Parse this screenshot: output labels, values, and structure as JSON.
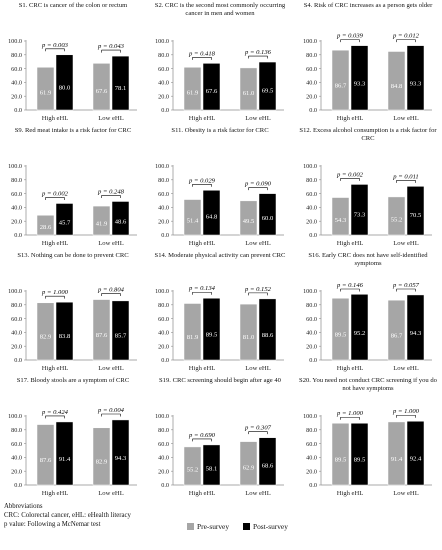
{
  "colors": {
    "pre": "#a6a6a6",
    "post": "#000000",
    "bar_stroke": "#ffffff",
    "axis": "#8c8c8c"
  },
  "chart_data": [
    {
      "type": "bar",
      "title": "S1. CRC is cancer of the colon or rectum",
      "categories": [
        "High eHL",
        "Low eHL"
      ],
      "series": [
        {
          "name": "Pre-survey",
          "values": [
            61.9,
            67.6
          ]
        },
        {
          "name": "Post-survey",
          "values": [
            80.0,
            78.1
          ]
        }
      ],
      "p_values": [
        "p = 0.003",
        "p = 0.043"
      ],
      "ylim": [
        0,
        100
      ],
      "yticks": [
        "0.0",
        "20.0",
        "40.0",
        "60.0",
        "80.0",
        "100.0"
      ]
    },
    {
      "type": "bar",
      "title": "S2. CRC is the second most commonly occurring cancer in men and women",
      "categories": [
        "High eHL",
        "Low eHL"
      ],
      "series": [
        {
          "name": "Pre-survey",
          "values": [
            61.9,
            61.0
          ]
        },
        {
          "name": "Post-survey",
          "values": [
            67.6,
            69.5
          ]
        }
      ],
      "p_values": [
        "p = 0.418",
        "p = 0.136"
      ],
      "ylim": [
        0,
        100
      ],
      "yticks": [
        "0.0",
        "20.0",
        "40.0",
        "60.0",
        "80.0",
        "100.0"
      ]
    },
    {
      "type": "bar",
      "title": "S4. Risk of CRC increases as a person gets older",
      "categories": [
        "High eHL",
        "Low eHL"
      ],
      "series": [
        {
          "name": "Pre-survey",
          "values": [
            86.7,
            84.8
          ]
        },
        {
          "name": "Post-survey",
          "values": [
            93.3,
            93.3
          ]
        }
      ],
      "p_values": [
        "p = 0.039",
        "p = 0.012"
      ],
      "ylim": [
        0,
        100
      ],
      "yticks": [
        "0.0",
        "20.0",
        "40.0",
        "60.0",
        "80.0",
        "100.0"
      ]
    },
    {
      "type": "bar",
      "title": "S9. Red meat intake is a risk factor for CRC",
      "categories": [
        "High eHL",
        "Low eHL"
      ],
      "series": [
        {
          "name": "Pre-survey",
          "values": [
            28.6,
            41.9
          ]
        },
        {
          "name": "Post-survey",
          "values": [
            45.7,
            48.6
          ]
        }
      ],
      "p_values": [
        "p = 0.002",
        "p = 0.248"
      ],
      "ylim": [
        0,
        100
      ],
      "yticks": [
        "0.0",
        "20.0",
        "40.0",
        "60.0",
        "80.0",
        "100.0"
      ]
    },
    {
      "type": "bar",
      "title": "S11. Obesity is a risk factor for CRC",
      "categories": [
        "High eHL",
        "Low eHL"
      ],
      "series": [
        {
          "name": "Pre-survey",
          "values": [
            51.4,
            49.5
          ]
        },
        {
          "name": "Post-survey",
          "values": [
            64.8,
            60.0
          ]
        }
      ],
      "p_values": [
        "p = 0.029",
        "p = 0.090"
      ],
      "ylim": [
        0,
        100
      ],
      "yticks": [
        "0.0",
        "20.0",
        "40.0",
        "60.0",
        "80.0",
        "100.0"
      ]
    },
    {
      "type": "bar",
      "title": "S12. Excess alcohol consumption is a risk factor for CRC",
      "categories": [
        "High eHL",
        "Low eHL"
      ],
      "series": [
        {
          "name": "Pre-survey",
          "values": [
            54.3,
            55.2
          ]
        },
        {
          "name": "Post-survey",
          "values": [
            73.3,
            70.5
          ]
        }
      ],
      "p_values": [
        "p = 0.002",
        "p = 0.011"
      ],
      "ylim": [
        0,
        100
      ],
      "yticks": [
        "0.0",
        "20.0",
        "40.0",
        "60.0",
        "80.0",
        "100.0"
      ]
    },
    {
      "type": "bar",
      "title": "S13. Nothing can be done to prevent CRC",
      "categories": [
        "High eHL",
        "Low eHL"
      ],
      "series": [
        {
          "name": "Pre-survey",
          "values": [
            82.9,
            87.6
          ]
        },
        {
          "name": "Post-survey",
          "values": [
            83.8,
            85.7
          ]
        }
      ],
      "p_values": [
        "p = 1.000",
        "p = 0.804"
      ],
      "ylim": [
        0,
        100
      ],
      "yticks": [
        "0.0",
        "20.0",
        "40.0",
        "60.0",
        "80.0",
        "100.0"
      ]
    },
    {
      "type": "bar",
      "title": "S14. Moderate physical activity can prevent CRC",
      "categories": [
        "High eHL",
        "Low eHL"
      ],
      "series": [
        {
          "name": "Pre-survey",
          "values": [
            81.9,
            81.0
          ]
        },
        {
          "name": "Post-survey",
          "values": [
            89.5,
            88.6
          ]
        }
      ],
      "p_values": [
        "p = 0.134",
        "p = 0.152"
      ],
      "ylim": [
        0,
        100
      ],
      "yticks": [
        "0.0",
        "20.0",
        "40.0",
        "60.0",
        "80.0",
        "100.0"
      ]
    },
    {
      "type": "bar",
      "title": "S16. Early CRC does not have self-identified symptoms",
      "categories": [
        "High eHL",
        "Low eHL"
      ],
      "series": [
        {
          "name": "Pre-survey",
          "values": [
            89.5,
            86.7
          ]
        },
        {
          "name": "Post-survey",
          "values": [
            95.2,
            94.3
          ]
        }
      ],
      "p_values": [
        "p = 0.146",
        "p = 0.057"
      ],
      "ylim": [
        0,
        100
      ],
      "yticks": [
        "0.0",
        "20.0",
        "40.0",
        "60.0",
        "80.0",
        "100.0"
      ]
    },
    {
      "type": "bar",
      "title": "S17. Bloody stools are a symptom of CRC",
      "categories": [
        "High eHL",
        "Low eHL"
      ],
      "series": [
        {
          "name": "Pre-survey",
          "values": [
            87.6,
            82.9
          ]
        },
        {
          "name": "Post-survey",
          "values": [
            91.4,
            94.3
          ]
        }
      ],
      "p_values": [
        "p = 0.424",
        "p = 0.004"
      ],
      "ylim": [
        0,
        100
      ],
      "yticks": [
        "0.0",
        "20.0",
        "40.0",
        "60.0",
        "80.0",
        "100.0"
      ]
    },
    {
      "type": "bar",
      "title": "S19. CRC screening should begin after age 40",
      "categories": [
        "High eHL",
        "Low eHL"
      ],
      "series": [
        {
          "name": "Pre-survey",
          "values": [
            55.2,
            62.9
          ]
        },
        {
          "name": "Post-survey",
          "values": [
            58.1,
            68.6
          ]
        }
      ],
      "p_values": [
        "p = 0.690",
        "p = 0.307"
      ],
      "ylim": [
        0,
        100
      ],
      "yticks": [
        "0.0",
        "20.0",
        "40.0",
        "60.0",
        "80.0",
        "100.0"
      ]
    },
    {
      "type": "bar",
      "title": "S20. You need not conduct CRC screening if you do not have symptoms",
      "categories": [
        "High eHL",
        "Low eHL"
      ],
      "series": [
        {
          "name": "Pre-survey",
          "values": [
            89.5,
            91.4
          ]
        },
        {
          "name": "Post-survey",
          "values": [
            89.5,
            92.4
          ]
        }
      ],
      "p_values": [
        "p = 1.000",
        "p = 1.000"
      ],
      "ylim": [
        0,
        100
      ],
      "yticks": [
        "0.0",
        "20.0",
        "40.0",
        "60.0",
        "80.0",
        "100.0"
      ]
    }
  ],
  "footer": {
    "abbr_heading": "Abbreviations",
    "abbr_line1": "CRC: Colorectal cancer, eHL: eHealth literacy",
    "abbr_line2": "p value: Following a McNemar test"
  },
  "legend": {
    "pre": "Pre-survey",
    "post": "Post-survey"
  }
}
